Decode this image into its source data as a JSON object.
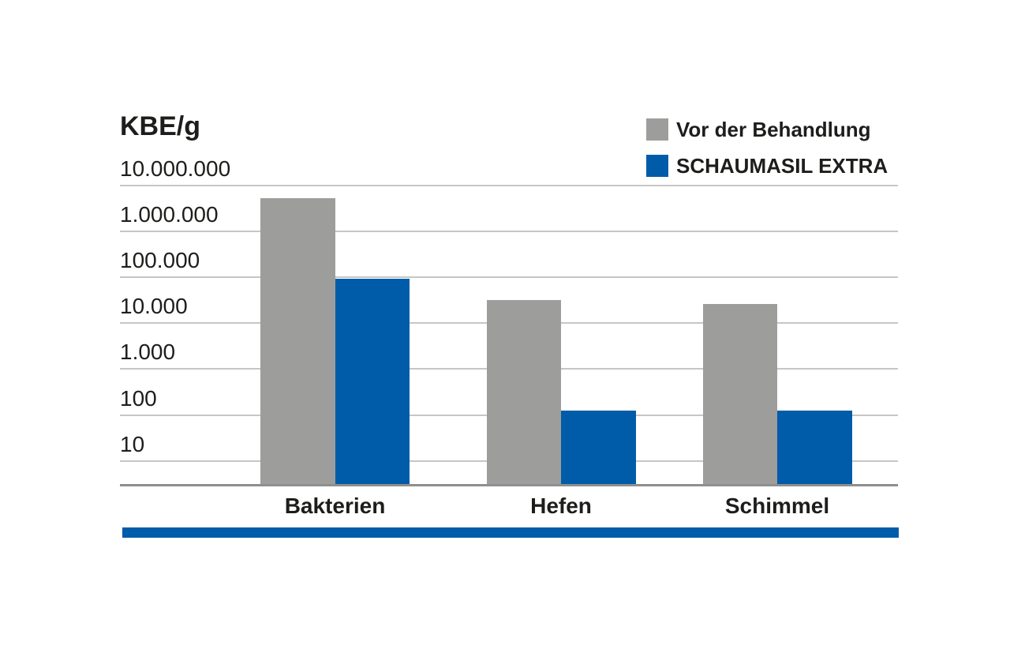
{
  "chart_data": {
    "type": "bar",
    "title": "KBE/g",
    "y_axis": {
      "scale": "log",
      "tick_labels": [
        "10.000.000",
        "1.000.000",
        "100.000",
        "10.000",
        "1.000",
        "100",
        "10"
      ],
      "tick_values": [
        10000000,
        1000000,
        100000,
        10000,
        1000,
        100,
        10
      ]
    },
    "categories": [
      "Bakterien",
      "Hefen",
      "Schimmel"
    ],
    "series": [
      {
        "name": "Vor der Behandlung",
        "color": "#9d9d9c",
        "values": [
          5000000,
          30000,
          25000
        ]
      },
      {
        "name": "SCHAUMASIL EXTRA",
        "color": "#005ca9",
        "values": [
          90000,
          120,
          120
        ]
      }
    ],
    "legend_position": "top-right",
    "grid": true,
    "gridline_color": "#c6c6c6",
    "axis_line_color": "#8f8f8f",
    "text_color": "#1d1d1b"
  },
  "footer_rule": {
    "color": "#005ca9"
  }
}
